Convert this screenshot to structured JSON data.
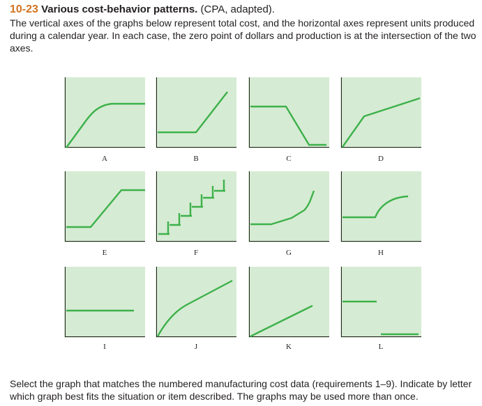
{
  "problem": {
    "number": "10-23",
    "title": "Various cost-behavior patterns.",
    "source": "(CPA, adapted).",
    "intro": "The vertical axes of the graphs below represent total cost, and the horizontal axes represent units produced during a calendar year. In each case, the zero point of dollars and production is at the intersection of the two axes."
  },
  "graphs": {
    "fill_color": "#d6ebd3",
    "line_color": "#3cb14a",
    "axis_color": "#231f20",
    "items": [
      {
        "label": "A"
      },
      {
        "label": "B"
      },
      {
        "label": "C"
      },
      {
        "label": "D"
      },
      {
        "label": "E"
      },
      {
        "label": "F"
      },
      {
        "label": "G"
      },
      {
        "label": "H"
      },
      {
        "label": "I"
      },
      {
        "label": "J"
      },
      {
        "label": "K"
      },
      {
        "label": "L"
      }
    ]
  },
  "instructions": "Select the graph that matches the numbered manufacturing cost data (requirements 1–9). Indicate by letter which graph best fits the situation or item described. The graphs may be used more than once."
}
